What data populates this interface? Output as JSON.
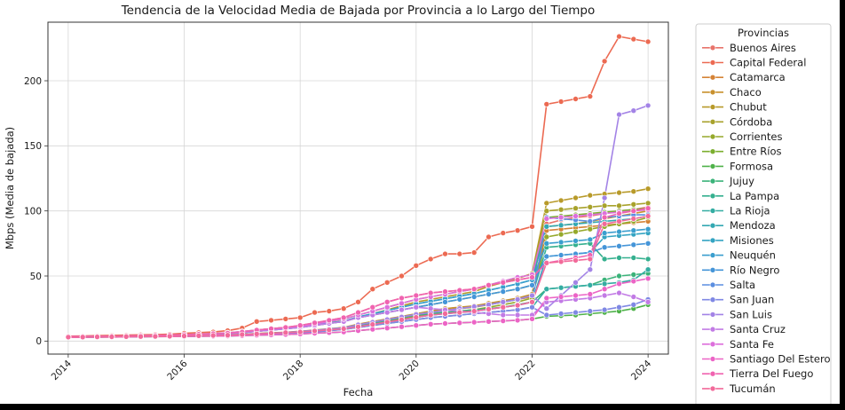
{
  "chart_data": {
    "type": "line",
    "title": "Tendencia de la Velocidad Media de Bajada por Provincia a lo Largo del Tiempo",
    "xlabel": "Fecha",
    "ylabel": "Mbps (Media de bajada)",
    "xlim": [
      2013.65,
      2024.35
    ],
    "ylim": [
      -10,
      245
    ],
    "x_ticks": [
      2014,
      2016,
      2018,
      2020,
      2022,
      2024
    ],
    "y_ticks": [
      0,
      50,
      100,
      150,
      200
    ],
    "grid": true,
    "legend_title": "Provincias",
    "legend_position": "right, outside plot",
    "x": [
      2014.0,
      2014.25,
      2014.5,
      2014.75,
      2015.0,
      2015.25,
      2015.5,
      2015.75,
      2016.0,
      2016.25,
      2016.5,
      2016.75,
      2017.0,
      2017.25,
      2017.5,
      2017.75,
      2018.0,
      2018.25,
      2018.5,
      2018.75,
      2019.0,
      2019.25,
      2019.5,
      2019.75,
      2020.0,
      2020.25,
      2020.5,
      2020.75,
      2021.0,
      2021.25,
      2021.5,
      2021.75,
      2022.0,
      2022.25,
      2022.5,
      2022.75,
      2023.0,
      2023.25,
      2023.5,
      2023.75,
      2024.0
    ],
    "series": [
      {
        "name": "Buenos Aires",
        "color": "#e8746b",
        "values": [
          3.5,
          3.6,
          3.7,
          3.8,
          4.0,
          4.2,
          4.4,
          4.6,
          5.0,
          5.3,
          5.7,
          6.1,
          7.0,
          8.5,
          9.5,
          10.5,
          12.0,
          14.0,
          16.0,
          18.0,
          22.0,
          26.0,
          30.0,
          33.0,
          35.0,
          37.0,
          38.0,
          39.0,
          40.0,
          43.0,
          45.0,
          47.0,
          49.0,
          90.0,
          93.0,
          95.0,
          96.0,
          98.0,
          100.0,
          101.0,
          103.0
        ]
      },
      {
        "name": "Capital Federal",
        "color": "#ec6a52",
        "values": [
          3.8,
          4.0,
          4.2,
          4.4,
          4.6,
          4.8,
          5.0,
          5.3,
          6.0,
          6.5,
          7.0,
          8.0,
          10.0,
          15.0,
          16.0,
          17.0,
          18.0,
          22.0,
          23.0,
          25.0,
          30.0,
          40.0,
          45.0,
          50.0,
          58.0,
          63.0,
          67.0,
          67.0,
          68.0,
          80.0,
          83.0,
          85.0,
          88.0,
          182.0,
          184.0,
          186.0,
          188.0,
          215.0,
          234.0,
          232.0,
          230.0
        ]
      },
      {
        "name": "Catamarca",
        "color": "#d58336",
        "values": [
          3.0,
          3.1,
          3.2,
          3.3,
          3.4,
          3.5,
          3.6,
          3.7,
          3.9,
          4.1,
          4.3,
          4.5,
          5.0,
          5.5,
          6.0,
          6.5,
          7.0,
          8.0,
          9.0,
          10.0,
          12.0,
          14.0,
          16.0,
          18.0,
          20.0,
          22.0,
          24.0,
          25.0,
          26.0,
          28.0,
          30.0,
          32.0,
          34.0,
          85.0,
          86.0,
          87.0,
          88.0,
          89.0,
          90.0,
          91.0,
          92.0
        ]
      },
      {
        "name": "Chaco",
        "color": "#c8902d",
        "values": [
          3.1,
          3.2,
          3.3,
          3.4,
          3.5,
          3.6,
          3.7,
          3.8,
          4.0,
          4.2,
          4.4,
          4.6,
          5.2,
          5.8,
          6.3,
          6.8,
          7.5,
          8.5,
          9.5,
          10.5,
          13.0,
          15.0,
          17.0,
          19.0,
          21.0,
          23.0,
          25.0,
          26.0,
          27.0,
          29.0,
          31.0,
          33.0,
          36.0,
          88.0,
          89.0,
          90.0,
          92.0,
          94.0,
          96.0,
          98.0,
          100.0
        ]
      },
      {
        "name": "Chubut",
        "color": "#b89a2a",
        "values": [
          3.3,
          3.4,
          3.5,
          3.6,
          3.8,
          4.0,
          4.2,
          4.4,
          4.8,
          5.2,
          5.6,
          6.0,
          7.0,
          8.0,
          9.0,
          10.0,
          11.0,
          12.5,
          14.0,
          15.5,
          18.0,
          21.0,
          24.0,
          27.0,
          30.0,
          32.0,
          34.0,
          36.0,
          38.0,
          42.0,
          45.0,
          48.0,
          52.0,
          106.0,
          108.0,
          110.0,
          112.0,
          113.0,
          114.0,
          115.0,
          117.0
        ]
      },
      {
        "name": "Córdoba",
        "color": "#a8a22c",
        "values": [
          3.4,
          3.5,
          3.6,
          3.7,
          3.9,
          4.1,
          4.3,
          4.5,
          5.0,
          5.4,
          5.8,
          6.3,
          7.3,
          8.5,
          9.5,
          10.5,
          11.5,
          13.0,
          15.0,
          17.0,
          20.0,
          23.0,
          26.0,
          29.0,
          32.0,
          34.0,
          36.0,
          38.0,
          40.0,
          43.0,
          46.0,
          49.0,
          51.0,
          100.0,
          101.0,
          102.0,
          103.0,
          104.0,
          104.0,
          105.0,
          106.0
        ]
      },
      {
        "name": "Corrientes",
        "color": "#95a92b",
        "values": [
          3.0,
          3.1,
          3.2,
          3.3,
          3.4,
          3.5,
          3.6,
          3.7,
          3.9,
          4.1,
          4.3,
          4.5,
          5.0,
          5.4,
          5.8,
          6.2,
          6.8,
          7.5,
          8.5,
          9.5,
          11.0,
          13.0,
          15.0,
          17.0,
          19.0,
          21.0,
          22.0,
          23.0,
          24.0,
          26.0,
          28.0,
          30.0,
          33.0,
          80.0,
          82.0,
          84.0,
          86.0,
          88.0,
          90.0,
          92.0,
          95.0
        ]
      },
      {
        "name": "Entre Ríos",
        "color": "#7bae2e",
        "values": [
          3.2,
          3.3,
          3.4,
          3.5,
          3.7,
          3.9,
          4.1,
          4.3,
          4.6,
          5.0,
          5.4,
          5.8,
          6.5,
          7.5,
          8.5,
          9.5,
          10.5,
          12.0,
          13.5,
          15.0,
          18.0,
          20.0,
          22.0,
          24.0,
          26.0,
          28.0,
          30.0,
          32.0,
          34.0,
          36.0,
          38.0,
          40.0,
          43.0,
          95.0,
          96.0,
          97.0,
          98.0,
          99.0,
          100.0,
          101.0,
          102.0
        ]
      },
      {
        "name": "Formosa",
        "color": "#4fb24a",
        "values": [
          2.8,
          2.9,
          3.0,
          3.1,
          3.2,
          3.3,
          3.4,
          3.5,
          3.6,
          3.7,
          3.8,
          3.9,
          4.2,
          4.5,
          4.8,
          5.1,
          5.5,
          6.0,
          6.5,
          7.0,
          8.0,
          9.0,
          10.0,
          11.0,
          12.0,
          13.0,
          13.5,
          14.0,
          14.5,
          15.0,
          15.5,
          16.0,
          17.0,
          19.0,
          19.5,
          20.0,
          21.0,
          22.0,
          23.0,
          25.0,
          28.0
        ]
      },
      {
        "name": "Jujuy",
        "color": "#3bb37a",
        "values": [
          3.0,
          3.1,
          3.2,
          3.3,
          3.4,
          3.5,
          3.6,
          3.7,
          3.9,
          4.1,
          4.3,
          4.5,
          5.0,
          5.5,
          6.0,
          6.5,
          7.2,
          8.0,
          9.0,
          10.0,
          12.0,
          14.0,
          16.0,
          18.0,
          20.0,
          21.0,
          22.0,
          23.0,
          24.0,
          25.0,
          26.0,
          28.0,
          30.0,
          40.0,
          41.0,
          42.0,
          43.0,
          47.0,
          50.0,
          51.0,
          52.0
        ]
      },
      {
        "name": "La Pampa",
        "color": "#35b08f",
        "values": [
          3.1,
          3.2,
          3.3,
          3.4,
          3.5,
          3.6,
          3.7,
          3.8,
          4.0,
          4.2,
          4.4,
          4.6,
          5.1,
          5.6,
          6.1,
          6.6,
          7.3,
          8.2,
          9.2,
          10.2,
          12.5,
          14.5,
          16.5,
          18.5,
          20.5,
          22.0,
          23.5,
          25.0,
          26.5,
          28.0,
          30.0,
          32.0,
          35.0,
          72.0,
          73.0,
          74.0,
          75.0,
          63.0,
          64.0,
          64.0,
          63.0
        ]
      },
      {
        "name": "La Rioja",
        "color": "#34ada2",
        "values": [
          2.9,
          3.0,
          3.1,
          3.2,
          3.3,
          3.4,
          3.5,
          3.6,
          3.7,
          3.8,
          3.9,
          4.0,
          4.4,
          4.8,
          5.2,
          5.6,
          6.2,
          7.0,
          8.0,
          9.0,
          10.5,
          12.0,
          13.5,
          15.0,
          16.5,
          18.0,
          19.0,
          20.0,
          21.0,
          22.0,
          23.0,
          24.0,
          26.0,
          40.0,
          41.0,
          42.0,
          43.0,
          44.0,
          45.0,
          47.0,
          55.0
        ]
      },
      {
        "name": "Mendoza",
        "color": "#33a8b2",
        "values": [
          3.3,
          3.4,
          3.5,
          3.6,
          3.8,
          4.0,
          4.2,
          4.4,
          4.8,
          5.2,
          5.6,
          6.0,
          6.8,
          7.8,
          8.8,
          9.8,
          10.8,
          12.3,
          13.8,
          15.3,
          18.5,
          21.0,
          23.5,
          26.0,
          28.5,
          30.5,
          32.5,
          34.5,
          36.5,
          39.0,
          41.5,
          44.0,
          47.0,
          88.0,
          89.0,
          90.0,
          91.0,
          92.0,
          93.0,
          94.0,
          96.0
        ]
      },
      {
        "name": "Misiones",
        "color": "#34a4c2",
        "values": [
          3.0,
          3.1,
          3.2,
          3.3,
          3.4,
          3.5,
          3.6,
          3.7,
          3.9,
          4.1,
          4.3,
          4.5,
          5.0,
          5.5,
          6.0,
          6.5,
          7.0,
          7.8,
          8.6,
          9.4,
          11.0,
          12.8,
          14.6,
          16.4,
          18.2,
          20.0,
          21.0,
          22.0,
          23.0,
          24.5,
          26.0,
          27.5,
          30.0,
          65.0,
          66.0,
          67.0,
          68.0,
          80.0,
          81.0,
          82.0,
          83.0
        ]
      },
      {
        "name": "Neuquén",
        "color": "#3a9ece",
        "values": [
          3.3,
          3.4,
          3.5,
          3.6,
          3.8,
          4.0,
          4.2,
          4.4,
          4.8,
          5.2,
          5.6,
          6.0,
          6.8,
          7.8,
          8.8,
          9.8,
          10.8,
          12.3,
          13.8,
          15.3,
          18.5,
          21.0,
          23.5,
          26.0,
          28.5,
          30.5,
          32.5,
          34.5,
          36.5,
          39.0,
          41.5,
          44.0,
          47.0,
          75.0,
          76.0,
          77.0,
          78.0,
          83.0,
          84.0,
          85.0,
          86.0
        ]
      },
      {
        "name": "Río Negro",
        "color": "#4595d8",
        "values": [
          3.2,
          3.3,
          3.4,
          3.5,
          3.7,
          3.9,
          4.1,
          4.3,
          4.6,
          5.0,
          5.4,
          5.8,
          6.5,
          7.5,
          8.5,
          9.5,
          10.5,
          12.0,
          13.5,
          15.0,
          18.0,
          20.0,
          22.0,
          24.0,
          26.0,
          28.0,
          30.0,
          32.0,
          34.0,
          36.0,
          38.0,
          40.0,
          43.0,
          65.0,
          66.0,
          67.0,
          68.0,
          72.0,
          73.0,
          74.0,
          75.0
        ]
      },
      {
        "name": "Salta",
        "color": "#5b8ee0",
        "values": [
          3.0,
          3.1,
          3.2,
          3.3,
          3.4,
          3.5,
          3.6,
          3.7,
          3.9,
          4.1,
          4.3,
          4.5,
          5.0,
          5.5,
          6.0,
          6.5,
          7.0,
          7.8,
          8.6,
          9.4,
          11.0,
          12.8,
          14.6,
          16.4,
          18.2,
          20.0,
          21.0,
          22.0,
          23.0,
          24.5,
          26.0,
          27.5,
          30.0,
          95.0,
          94.0,
          93.0,
          92.0,
          95.0,
          96.0,
          97.0,
          97.0
        ]
      },
      {
        "name": "San Juan",
        "color": "#7f88e4",
        "values": [
          2.9,
          3.0,
          3.1,
          3.2,
          3.3,
          3.4,
          3.5,
          3.6,
          3.7,
          3.8,
          3.9,
          4.0,
          4.4,
          4.8,
          5.2,
          5.6,
          6.2,
          7.0,
          8.0,
          9.0,
          10.5,
          12.0,
          13.5,
          15.0,
          16.5,
          18.0,
          19.0,
          20.0,
          21.0,
          22.0,
          23.0,
          24.0,
          26.0,
          20.0,
          21.0,
          22.0,
          23.0,
          24.0,
          26.0,
          28.0,
          32.0
        ]
      },
      {
        "name": "San Luis",
        "color": "#a383e6",
        "values": [
          3.1,
          3.2,
          3.3,
          3.4,
          3.5,
          3.6,
          3.7,
          3.8,
          4.0,
          4.2,
          4.4,
          4.6,
          5.1,
          5.6,
          6.1,
          6.6,
          7.3,
          8.2,
          9.2,
          10.2,
          12.5,
          14.5,
          16.5,
          18.5,
          20.5,
          22.0,
          23.5,
          25.0,
          26.5,
          28.0,
          30.0,
          32.0,
          35.0,
          25.0,
          35.0,
          45.0,
          55.0,
          110.0,
          174.0,
          177.0,
          181.0
        ]
      },
      {
        "name": "Santa Cruz",
        "color": "#c27be5",
        "values": [
          3.2,
          3.3,
          3.4,
          3.5,
          3.7,
          3.9,
          4.1,
          4.3,
          4.6,
          5.0,
          5.4,
          5.8,
          6.5,
          7.5,
          8.5,
          9.5,
          10.5,
          12.0,
          13.5,
          15.0,
          18.0,
          20.0,
          22.0,
          24.0,
          26.0,
          25.0,
          24.0,
          23.0,
          22.0,
          21.0,
          20.0,
          20.0,
          20.0,
          30.0,
          31.0,
          32.0,
          33.0,
          35.0,
          37.0,
          34.0,
          30.0
        ]
      },
      {
        "name": "Santa Fe",
        "color": "#dd6fdc",
        "values": [
          3.4,
          3.5,
          3.6,
          3.7,
          3.9,
          4.1,
          4.3,
          4.5,
          5.0,
          5.4,
          5.8,
          6.3,
          7.3,
          8.5,
          9.5,
          10.5,
          11.5,
          13.0,
          15.0,
          17.0,
          20.0,
          23.0,
          26.0,
          29.0,
          32.0,
          34.0,
          36.0,
          38.0,
          40.0,
          43.0,
          46.0,
          49.0,
          51.0,
          94.0,
          95.0,
          96.0,
          97.0,
          98.0,
          99.0,
          100.0,
          101.0
        ]
      },
      {
        "name": "Santiago Del Estero",
        "color": "#ec64c6",
        "values": [
          2.8,
          2.9,
          3.0,
          3.1,
          3.2,
          3.3,
          3.4,
          3.5,
          3.6,
          3.7,
          3.8,
          3.9,
          4.2,
          4.5,
          4.8,
          5.1,
          5.5,
          6.0,
          6.5,
          7.0,
          8.0,
          9.0,
          10.0,
          11.0,
          12.0,
          13.0,
          13.5,
          14.0,
          14.5,
          15.0,
          15.5,
          16.0,
          17.0,
          33.0,
          34.0,
          35.0,
          36.0,
          40.0,
          44.0,
          46.0,
          48.0
        ]
      },
      {
        "name": "Tierra Del Fuego",
        "color": "#f063b0",
        "values": [
          3.5,
          3.6,
          3.7,
          3.8,
          4.0,
          4.2,
          4.4,
          4.6,
          5.0,
          5.3,
          5.7,
          6.1,
          7.0,
          8.5,
          9.5,
          10.5,
          12.0,
          14.0,
          16.0,
          18.0,
          22.0,
          26.0,
          30.0,
          33.0,
          35.0,
          37.0,
          38.0,
          39.0,
          40.0,
          43.0,
          45.0,
          47.0,
          49.0,
          60.0,
          62.0,
          64.0,
          66.0,
          95.0,
          98.0,
          100.0,
          102.0
        ]
      },
      {
        "name": "Tucumán",
        "color": "#f26a9a",
        "values": [
          3.0,
          3.1,
          3.2,
          3.3,
          3.4,
          3.5,
          3.6,
          3.7,
          3.9,
          4.1,
          4.3,
          4.5,
          5.0,
          5.5,
          6.0,
          6.5,
          7.0,
          7.8,
          8.6,
          9.4,
          11.0,
          12.8,
          14.6,
          16.4,
          18.2,
          20.0,
          21.0,
          22.0,
          23.0,
          24.5,
          26.0,
          27.5,
          30.0,
          60.0,
          61.0,
          62.0,
          63.0,
          90.0,
          92.0,
          94.0,
          96.0
        ]
      }
    ]
  }
}
